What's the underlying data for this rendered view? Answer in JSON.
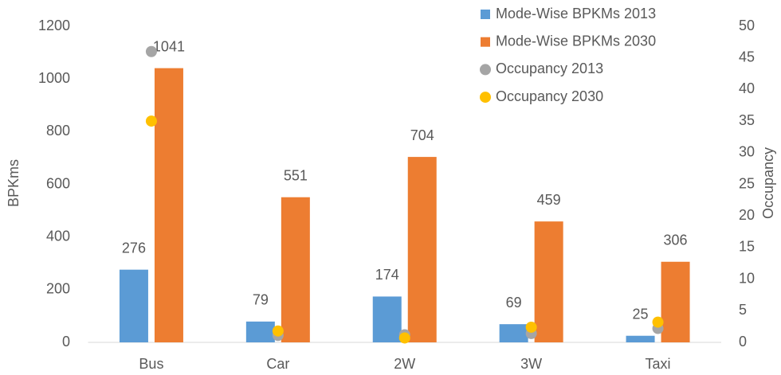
{
  "chart_data": {
    "type": "bar",
    "categories": [
      "Bus",
      "Car",
      "2W",
      "3W",
      "Taxi"
    ],
    "ylabel": "BPKms",
    "y2label": "Occupancy",
    "ylim": [
      0,
      1200
    ],
    "yticks": [
      0,
      200,
      400,
      600,
      800,
      1000,
      1200
    ],
    "y2lim": [
      0,
      50
    ],
    "y2ticks": [
      0,
      5,
      10,
      15,
      20,
      25,
      30,
      35,
      40,
      45,
      50
    ],
    "grid": false,
    "legend": "top-right",
    "series": [
      {
        "name": "Mode-Wise BPKMs 2013",
        "type": "bar",
        "color": "#5b9bd5",
        "values": [
          276,
          79,
          174,
          69,
          25
        ]
      },
      {
        "name": "Mode-Wise BPKMs 2030",
        "type": "bar",
        "color": "#ed7d31",
        "values": [
          1041,
          551,
          704,
          459,
          306
        ]
      },
      {
        "name": "Occupancy  2013",
        "type": "scatter",
        "axis": "y2",
        "color": "#a5a5a5",
        "values": [
          46,
          1.1,
          1.2,
          1.4,
          2.2
        ]
      },
      {
        "name": "Occupancy  2030",
        "type": "scatter",
        "axis": "y2",
        "color": "#ffc000",
        "values": [
          35,
          1.8,
          0.7,
          2.4,
          3.2
        ]
      }
    ]
  }
}
